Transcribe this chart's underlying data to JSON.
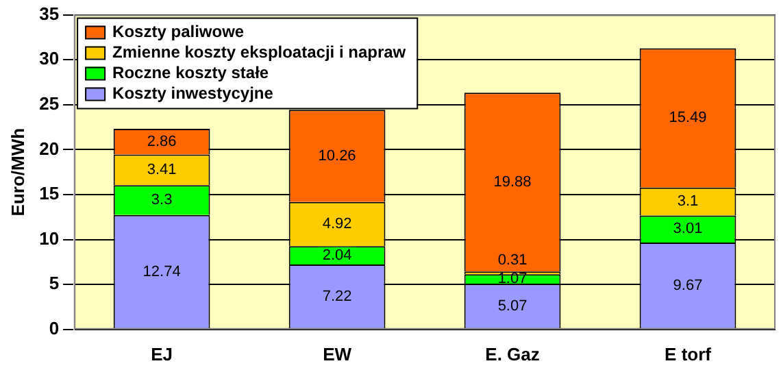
{
  "chart_data": {
    "type": "bar",
    "stacked": true,
    "ylabel": "Euro/MWh",
    "categories": [
      "EJ",
      "EW",
      "E. Gaz",
      "E torf"
    ],
    "ylim": [
      0,
      35
    ],
    "yticks": [
      0,
      5,
      10,
      15,
      20,
      25,
      30,
      35
    ],
    "grid": "y",
    "legend": "top left",
    "data_labels": true,
    "series": [
      {
        "name": "Koszty inwestycyjne",
        "color": "#9999ff",
        "values": [
          12.74,
          7.22,
          5.07,
          9.67
        ]
      },
      {
        "name": "Roczne koszty stałe",
        "color": "#00ff00",
        "values": [
          3.3,
          2.04,
          1.07,
          3.01
        ]
      },
      {
        "name": "Zmienne koszty eksploatacji i napraw",
        "color": "#ffcc00",
        "values": [
          3.41,
          4.92,
          0.31,
          3.1
        ]
      },
      {
        "name": "Koszty paliwowe",
        "color": "#ff6600",
        "values": [
          2.86,
          10.26,
          19.88,
          15.49
        ]
      }
    ]
  }
}
